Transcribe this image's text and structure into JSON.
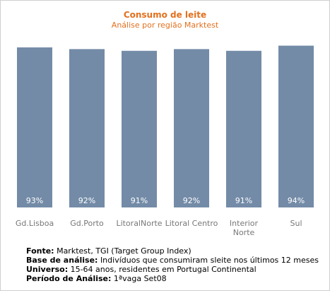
{
  "chart_data": {
    "type": "bar",
    "title": "Consumo de leite",
    "subtitle": "Análise por região Marktest",
    "categories": [
      [
        "Gd.Lisboa"
      ],
      [
        "Gd.Porto"
      ],
      [
        "LitoralNorte"
      ],
      [
        "Litoral Centro"
      ],
      [
        "Interior",
        "Norte"
      ],
      [
        "Sul"
      ]
    ],
    "values": [
      93,
      92,
      91,
      92,
      91,
      94
    ],
    "value_labels": [
      "93%",
      "92%",
      "91%",
      "92%",
      "91%",
      "94%"
    ],
    "ylim": [
      0,
      100
    ],
    "grid": false,
    "legend": "none",
    "bar_color": "#738ba7",
    "title_color": "#e3701e"
  },
  "notes": [
    {
      "label": "Fonte:",
      "text": "Marktest, TGI (Target Group Index)"
    },
    {
      "label": "Base de análise:",
      "text": "Indivíduos que consumiram sleite nos últimos 12 meses"
    },
    {
      "label": "Universo:",
      "text": "15-64 anos, residentes em Portugal Continental"
    },
    {
      "label": "Período de Análise:",
      "text": "1ªvaga Set08"
    }
  ]
}
